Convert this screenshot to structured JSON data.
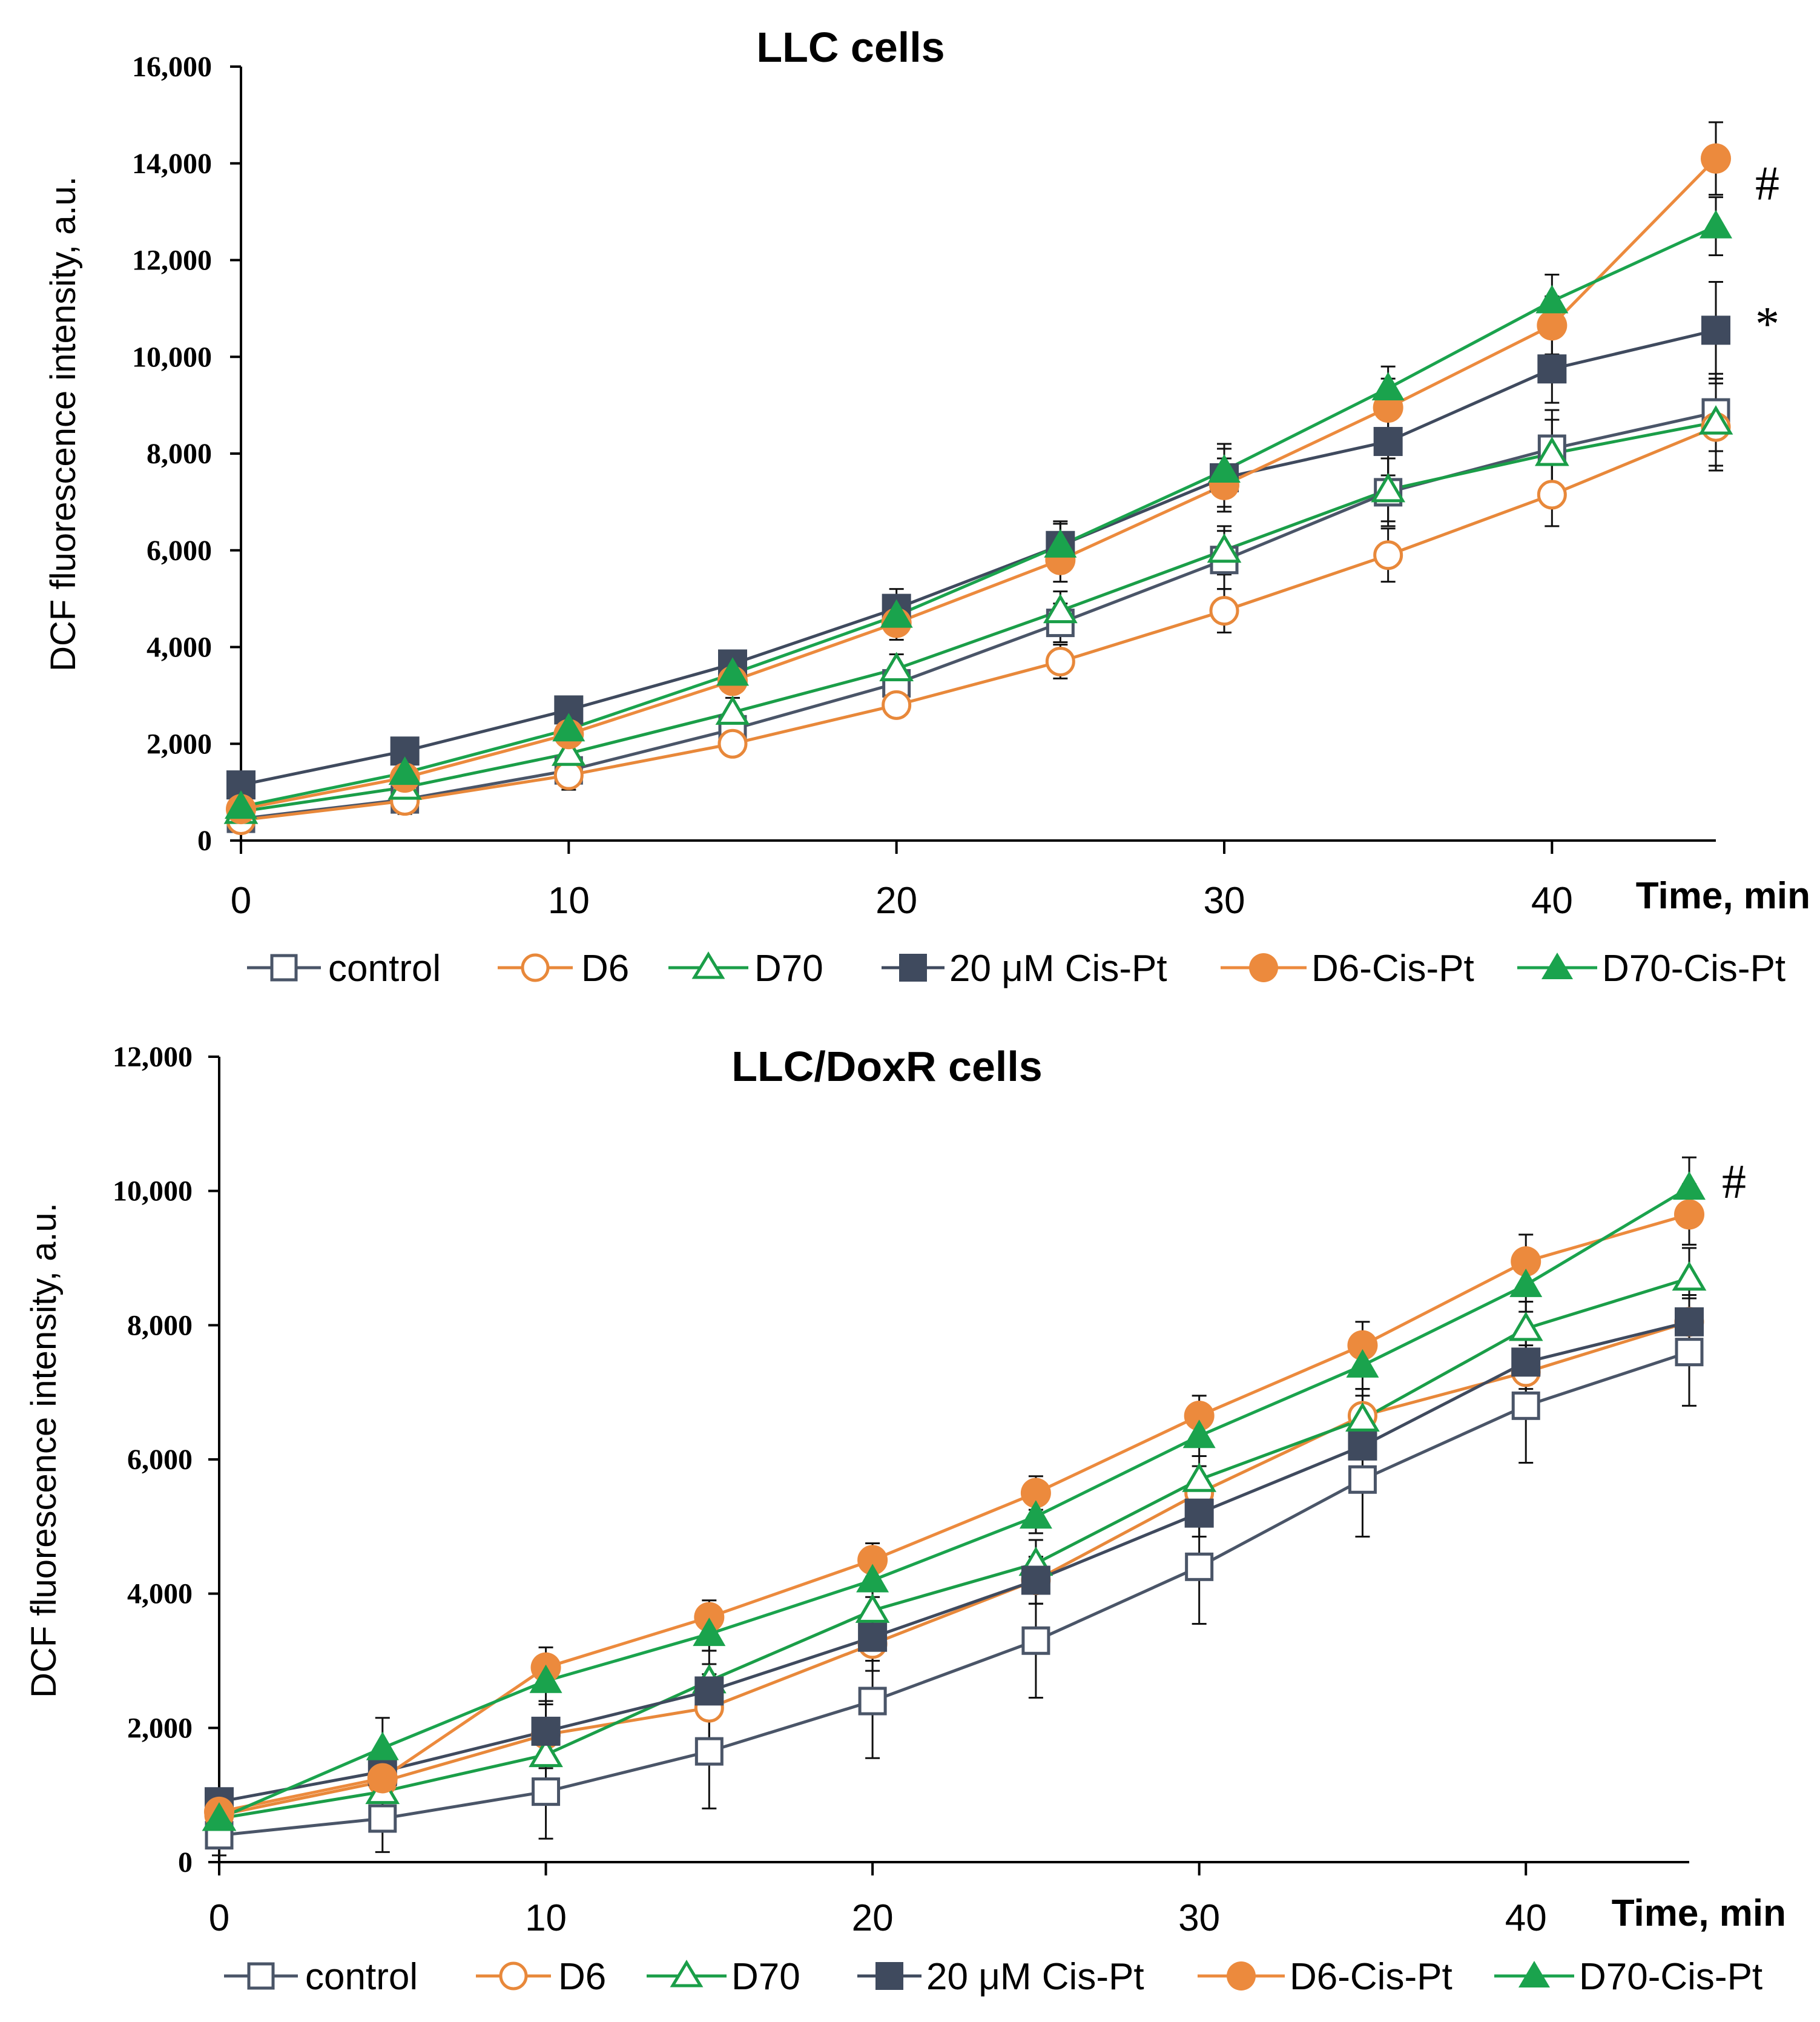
{
  "colors": {
    "control": "#4a5568",
    "D6": "#e8883a",
    "D70": "#1a9e48",
    "cispt": "#3f4a5e",
    "D6cispt": "#ec8a3d",
    "D70cispt": "#1aa34d",
    "axis": "#000000"
  },
  "legend": {
    "control": "control",
    "D6": "D6",
    "D70": "D70",
    "cispt": "20 μM Cis-Pt",
    "D6cispt": "D6-Cis-Pt",
    "D70cispt": "D70-Cis-Pt"
  },
  "chart_data": [
    {
      "type": "line",
      "title": "LLC cells",
      "xlabel": "Time, min",
      "ylabel": "DCF fluorescence intensity, a.u.",
      "xlim": [
        0,
        45
      ],
      "ylim": [
        0,
        16000
      ],
      "xticks": [
        0,
        10,
        20,
        30,
        40
      ],
      "xtick_labels": [
        "0",
        "10",
        "20",
        "30",
        "40"
      ],
      "yticks": [
        0,
        2000,
        4000,
        6000,
        8000,
        10000,
        12000,
        14000,
        16000
      ],
      "ytick_labels": [
        "0",
        "2,000",
        "4,000",
        "6,000",
        "8,000",
        "10,000",
        "12,000",
        "14,000",
        "16,000"
      ],
      "x": [
        0,
        5,
        10,
        15,
        20,
        25,
        30,
        35,
        40,
        45
      ],
      "series": [
        {
          "name": "control",
          "key": "control",
          "values": [
            450,
            850,
            1450,
            2300,
            3250,
            4500,
            5800,
            7200,
            8100,
            8850
          ],
          "errors": [
            150,
            300,
            350,
            300,
            350,
            400,
            600,
            700,
            800,
            800
          ]
        },
        {
          "name": "D6",
          "key": "D6",
          "values": [
            420,
            820,
            1350,
            2000,
            2800,
            3700,
            4750,
            5900,
            7150,
            8550
          ],
          "errors": [
            120,
            250,
            300,
            250,
            250,
            350,
            450,
            550,
            650,
            900
          ]
        },
        {
          "name": "D70",
          "key": "D70",
          "values": [
            600,
            1100,
            1800,
            2650,
            3550,
            4750,
            6000,
            7250,
            8000,
            8650
          ],
          "errors": [
            150,
            300,
            300,
            300,
            300,
            400,
            500,
            650,
            700,
            900
          ]
        },
        {
          "name": "20 μM Cis-Pt",
          "key": "cispt",
          "values": [
            1150,
            1850,
            2700,
            3650,
            4800,
            6100,
            7500,
            8250,
            9750,
            10550
          ],
          "errors": [
            150,
            200,
            200,
            250,
            400,
            500,
            600,
            700,
            700,
            1000
          ]
        },
        {
          "name": "D6-Cis-Pt",
          "key": "D6cispt",
          "values": [
            650,
            1300,
            2200,
            3300,
            4500,
            5800,
            7350,
            8950,
            10650,
            14100
          ],
          "errors": [
            150,
            200,
            250,
            250,
            350,
            450,
            550,
            600,
            600,
            750
          ]
        },
        {
          "name": "D70-Cis-Pt",
          "key": "D70cispt",
          "values": [
            700,
            1400,
            2300,
            3450,
            4650,
            6100,
            7650,
            9350,
            11150,
            12700
          ],
          "errors": [
            150,
            200,
            250,
            250,
            350,
            450,
            550,
            450,
            550,
            600
          ]
        }
      ],
      "annotations": [
        {
          "text": "#",
          "x": 46.2,
          "y": 13600
        },
        {
          "text": "*",
          "x": 46.2,
          "y": 10700
        }
      ]
    },
    {
      "type": "line",
      "title": "LLC/DoxR cells",
      "xlabel": "Time, min",
      "ylabel": "DCF fluorescence intensity, a.u.",
      "xlim": [
        0,
        45
      ],
      "ylim": [
        0,
        12000
      ],
      "xticks": [
        0,
        10,
        20,
        30,
        40
      ],
      "xtick_labels": [
        "0",
        "10",
        "20",
        "30",
        "40"
      ],
      "yticks": [
        0,
        2000,
        4000,
        6000,
        8000,
        10000,
        12000
      ],
      "ytick_labels": [
        "0",
        "2,000",
        "4,000",
        "6,000",
        "8,000",
        "10,000",
        "12,000"
      ],
      "x": [
        0,
        5,
        10,
        15,
        20,
        25,
        30,
        35,
        40,
        45
      ],
      "series": [
        {
          "name": "control",
          "key": "control",
          "values": [
            400,
            650,
            1050,
            1650,
            2400,
            3300,
            4400,
            5700,
            6800,
            7600
          ],
          "errors": [
            300,
            500,
            700,
            850,
            850,
            850,
            850,
            850,
            850,
            800
          ]
        },
        {
          "name": "D6",
          "key": "D6",
          "values": [
            700,
            1200,
            1900,
            2300,
            3250,
            4200,
            5500,
            6650,
            7300,
            8050
          ],
          "errors": [
            200,
            400,
            500,
            500,
            400,
            350,
            400,
            400,
            400,
            400
          ]
        },
        {
          "name": "D70",
          "key": "D70",
          "values": [
            650,
            1050,
            1600,
            2700,
            3750,
            4450,
            5700,
            6600,
            7950,
            8700
          ],
          "errors": [
            200,
            400,
            450,
            450,
            350,
            350,
            350,
            350,
            400,
            450
          ]
        },
        {
          "name": "20 μM Cis-Pt",
          "key": "cispt",
          "values": [
            900,
            1350,
            1950,
            2550,
            3350,
            4200,
            5200,
            6200,
            7450,
            8050
          ],
          "errors": [
            200,
            350,
            400,
            400,
            350,
            350,
            350,
            350,
            400,
            400
          ]
        },
        {
          "name": "D6-Cis-Pt",
          "key": "D6cispt",
          "values": [
            750,
            1250,
            2900,
            3650,
            4500,
            5500,
            6650,
            7700,
            8950,
            9650
          ],
          "errors": [
            150,
            300,
            300,
            250,
            250,
            250,
            300,
            350,
            400,
            450
          ]
        },
        {
          "name": "D70-Cis-Pt",
          "key": "D70cispt",
          "values": [
            650,
            1700,
            2700,
            3400,
            4200,
            5150,
            6350,
            7400,
            8600,
            10050
          ],
          "errors": [
            150,
            450,
            300,
            250,
            250,
            250,
            300,
            350,
            400,
            450
          ]
        }
      ],
      "annotations": [
        {
          "text": "#",
          "x": 46.0,
          "y": 10150
        }
      ]
    }
  ]
}
